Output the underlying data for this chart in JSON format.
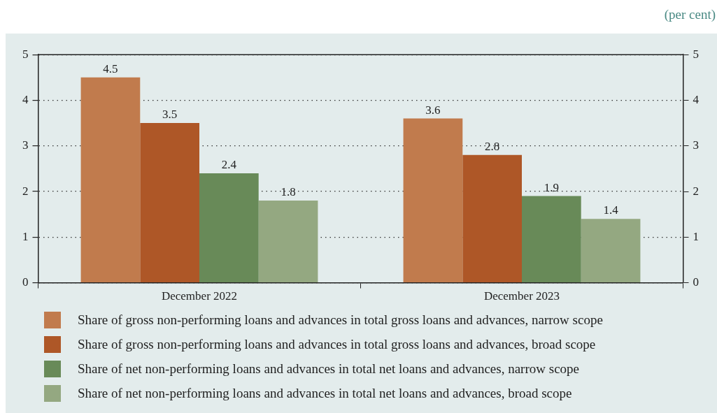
{
  "chart_data": {
    "type": "bar",
    "ylabel": "(per cent)",
    "categories": [
      "December 2022",
      "December 2023"
    ],
    "series": [
      {
        "name": "Share of gross non-performing loans and advances in total gross loans and advances, narrow scope",
        "color": "#c17b4d",
        "values": [
          4.5,
          3.6
        ]
      },
      {
        "name": "Share of gross non-performing loans and advances in total gross loans and advances, broad scope",
        "color": "#ae5727",
        "values": [
          3.5,
          2.8
        ]
      },
      {
        "name": "Share of net non-performing loans and advances in total net loans and advances, narrow scope",
        "color": "#688a58",
        "values": [
          2.4,
          1.9
        ]
      },
      {
        "name": "Share of net non-performing loans and advances in total net loans and advances, broad scope",
        "color": "#94a881",
        "values": [
          1.8,
          1.4
        ]
      }
    ],
    "ylim": [
      0,
      5
    ],
    "yticks": [
      0,
      1,
      2,
      3,
      4,
      5
    ],
    "y2lim": [
      0,
      5
    ],
    "y2ticks": [
      0,
      1,
      2,
      3,
      4,
      5
    ],
    "grid": "y",
    "legend": "bottom",
    "data_labels": true
  }
}
